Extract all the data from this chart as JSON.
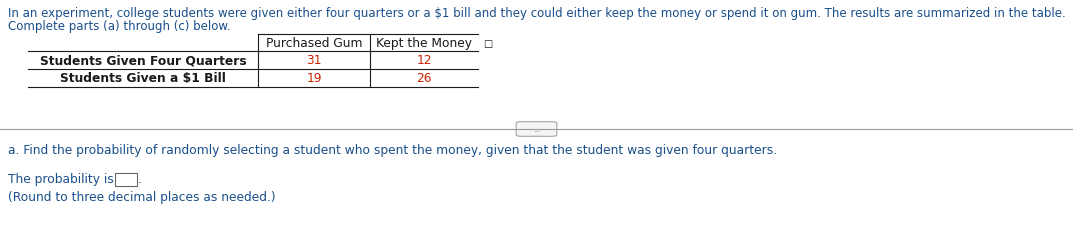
{
  "intro_text": "In an experiment, college students were given either four quarters or a $1 bill and they could either keep the money or spend it on gum. The results are summarized in the table.",
  "intro_text2": "Complete parts (a) through (c) below.",
  "col_headers": [
    "Purchased Gum",
    "Kept the Money"
  ],
  "row_labels": [
    "Students Given Four Quarters",
    "Students Given a $1 Bill"
  ],
  "data": [
    [
      31,
      12
    ],
    [
      19,
      26
    ]
  ],
  "part_a_text": "a. Find the probability of randomly selecting a student who spent the money, given that the student was given four quarters.",
  "prob_label": "The probability is",
  "round_note": "(Round to three decimal places as needed.)",
  "blue_color": "#1a4f8a",
  "black_color": "#1a1a1a",
  "data_color": "#cc2200",
  "bg_color": "#ffffff",
  "divider_color": "#999999",
  "box_border_color": "#666666",
  "btn_border_color": "#999999",
  "btn_face_color": "#f5f5f5",
  "intro_fontsize": 8.5,
  "table_fontsize": 8.8,
  "body_fontsize": 8.8
}
